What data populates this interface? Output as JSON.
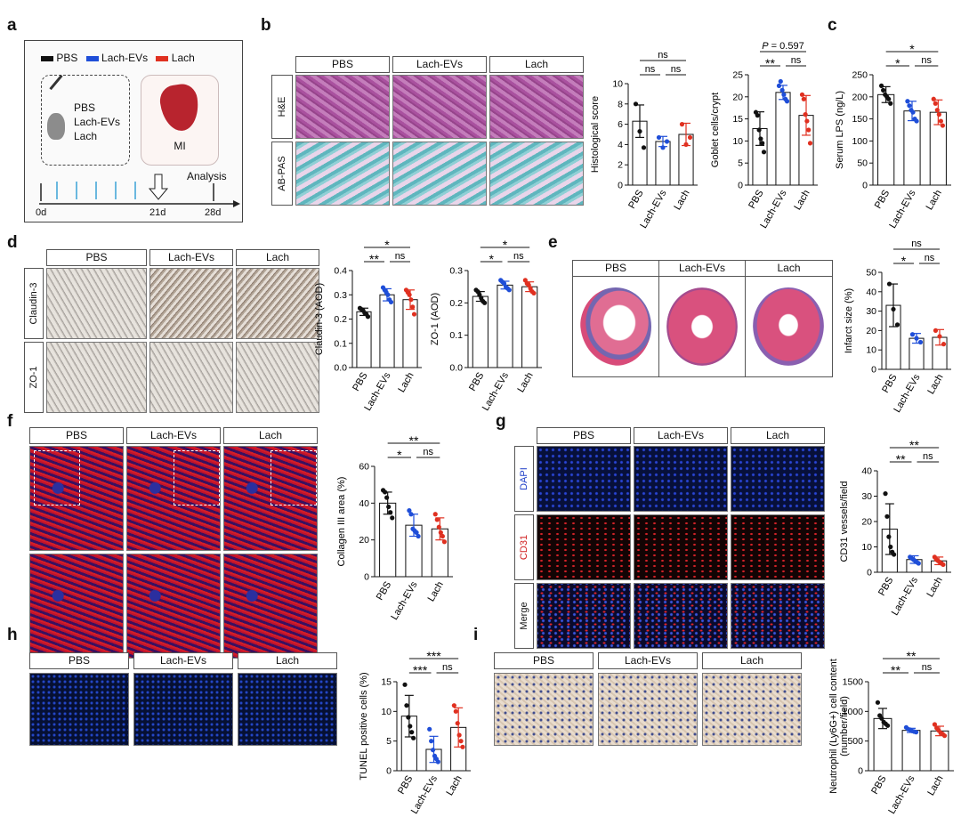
{
  "panel_labels": [
    "a",
    "b",
    "c",
    "d",
    "e",
    "f",
    "g",
    "h",
    "i"
  ],
  "schematic": {
    "legend": [
      {
        "label": "PBS",
        "color": "#111111"
      },
      {
        "label": "Lach-EVs",
        "color": "#1f4ed8"
      },
      {
        "label": "Lach",
        "color": "#e03020"
      }
    ],
    "treatments": [
      "PBS",
      "Lach-EVs",
      "Lach"
    ],
    "mi_label": "MI",
    "analysis_label": "Analysis",
    "days": [
      "0d",
      "21d",
      "28d"
    ]
  },
  "groups": [
    "PBS",
    "Lach-EVs",
    "Lach"
  ],
  "group_colors": [
    "#111111",
    "#1f4ed8",
    "#e03020"
  ],
  "b": {
    "rows": [
      "H&E",
      "AB-PAS"
    ]
  },
  "d": {
    "rows": [
      "Claudin-3",
      "ZO-1"
    ]
  },
  "g": {
    "rows": [
      "DAPI",
      "CD31",
      "Merge"
    ],
    "row_colors": [
      "#2040c8",
      "#d02020",
      "#111111"
    ]
  },
  "chart_data": [
    {
      "id": "b1",
      "type": "bar",
      "categories": [
        "PBS",
        "Lach-EVs",
        "Lach"
      ],
      "values": [
        6.3,
        4.3,
        5.0
      ],
      "errors": [
        1.6,
        0.5,
        1.1
      ],
      "points": [
        [
          8.0,
          5.3,
          3.7
        ],
        [
          4.7,
          3.7,
          4.3
        ],
        [
          6.0,
          4.0,
          4.7
        ]
      ],
      "ylabel": "Histological score",
      "ylim": [
        0,
        10
      ],
      "yticks": [
        0,
        2,
        4,
        6,
        8,
        10
      ],
      "sig": [
        {
          "a": 0,
          "b": 1,
          "label": "ns",
          "level": 0
        },
        {
          "a": 1,
          "b": 2,
          "label": "ns",
          "level": 0
        },
        {
          "a": 0,
          "b": 2,
          "label": "ns",
          "level": 1
        }
      ]
    },
    {
      "id": "b2",
      "type": "bar",
      "categories": [
        "PBS",
        "Lach-EVs",
        "Lach"
      ],
      "values": [
        12.8,
        21.0,
        15.8
      ],
      "errors": [
        3.8,
        1.6,
        4.5
      ],
      "points": [
        [
          16.5,
          15.8,
          12.5,
          10.5,
          9.5,
          7.5
        ],
        [
          22.5,
          23.5,
          21.5,
          20.5,
          19.5,
          19.0
        ],
        [
          20.5,
          19.5,
          16.0,
          14.5,
          12.5,
          9.5
        ]
      ],
      "ylabel": "Goblet cells/crypt",
      "ylim": [
        0,
        25
      ],
      "yticks": [
        0,
        5,
        10,
        15,
        20,
        25
      ],
      "sig": [
        {
          "a": 0,
          "b": 1,
          "label": "**",
          "level": 0
        },
        {
          "a": 1,
          "b": 2,
          "label": "ns",
          "level": 0
        },
        {
          "a": 0,
          "b": 2,
          "label": "P = 0.597",
          "level": 1
        }
      ]
    },
    {
      "id": "c",
      "type": "bar",
      "categories": [
        "PBS",
        "Lach-EVs",
        "Lach"
      ],
      "values": [
        205,
        168,
        165
      ],
      "errors": [
        18,
        22,
        28
      ],
      "points": [
        [
          225,
          215,
          205,
          200,
          195,
          185
        ],
        [
          190,
          180,
          170,
          165,
          150,
          145
        ],
        [
          195,
          185,
          170,
          160,
          145,
          135
        ]
      ],
      "ylabel": "Serum LPS (ng/L)",
      "ylim": [
        0,
        250
      ],
      "yticks": [
        0,
        50,
        100,
        150,
        200,
        250
      ],
      "sig": [
        {
          "a": 0,
          "b": 1,
          "label": "*",
          "level": 0
        },
        {
          "a": 1,
          "b": 2,
          "label": "ns",
          "level": 0
        },
        {
          "a": 0,
          "b": 2,
          "label": "*",
          "level": 1
        }
      ]
    },
    {
      "id": "d1",
      "type": "bar",
      "categories": [
        "PBS",
        "Lach-EVs",
        "Lach"
      ],
      "values": [
        0.23,
        0.3,
        0.28
      ],
      "errors": [
        0.015,
        0.025,
        0.04
      ],
      "points": [
        [
          0.245,
          0.24,
          0.235,
          0.225,
          0.22,
          0.21
        ],
        [
          0.33,
          0.32,
          0.31,
          0.3,
          0.28,
          0.27
        ],
        [
          0.32,
          0.31,
          0.3,
          0.28,
          0.25,
          0.22
        ]
      ],
      "ylabel": "Claudin-3 (AOD)",
      "ylim": [
        0,
        0.4
      ],
      "yticks": [
        0.0,
        0.1,
        0.2,
        0.3,
        0.4
      ],
      "sig": [
        {
          "a": 0,
          "b": 1,
          "label": "**",
          "level": 0
        },
        {
          "a": 1,
          "b": 2,
          "label": "ns",
          "level": 0
        },
        {
          "a": 0,
          "b": 2,
          "label": "*",
          "level": 1
        }
      ]
    },
    {
      "id": "d2",
      "type": "bar",
      "categories": [
        "PBS",
        "Lach-EVs",
        "Lach"
      ],
      "values": [
        0.22,
        0.255,
        0.25
      ],
      "errors": [
        0.015,
        0.012,
        0.015
      ],
      "points": [
        [
          0.24,
          0.235,
          0.225,
          0.215,
          0.205,
          0.2
        ],
        [
          0.27,
          0.265,
          0.26,
          0.25,
          0.245,
          0.24
        ],
        [
          0.27,
          0.26,
          0.255,
          0.245,
          0.235,
          0.23
        ]
      ],
      "ylabel": "ZO-1 (AOD)",
      "ylim": [
        0,
        0.3
      ],
      "yticks": [
        0.0,
        0.1,
        0.2,
        0.3
      ],
      "sig": [
        {
          "a": 0,
          "b": 1,
          "label": "*",
          "level": 0
        },
        {
          "a": 1,
          "b": 2,
          "label": "ns",
          "level": 0
        },
        {
          "a": 0,
          "b": 2,
          "label": "*",
          "level": 1
        }
      ]
    },
    {
      "id": "e",
      "type": "bar",
      "categories": [
        "PBS",
        "Lach-EVs",
        "Lach"
      ],
      "values": [
        33,
        16,
        16.5
      ],
      "errors": [
        11,
        2.5,
        4
      ],
      "points": [
        [
          44,
          31,
          23
        ],
        [
          18,
          16,
          14
        ],
        [
          20,
          17,
          13
        ]
      ],
      "ylabel": "Infarct size (%)",
      "ylim": [
        0,
        50
      ],
      "yticks": [
        0,
        10,
        20,
        30,
        40,
        50
      ],
      "sig": [
        {
          "a": 0,
          "b": 1,
          "label": "*",
          "level": 0
        },
        {
          "a": 1,
          "b": 2,
          "label": "ns",
          "level": 0
        },
        {
          "a": 0,
          "b": 2,
          "label": "ns",
          "level": 1
        }
      ]
    },
    {
      "id": "f",
      "type": "bar",
      "categories": [
        "PBS",
        "Lach-EVs",
        "Lach"
      ],
      "values": [
        40,
        28,
        26
      ],
      "errors": [
        6,
        6,
        6
      ],
      "points": [
        [
          47,
          46,
          43,
          38,
          35,
          32
        ],
        [
          36,
          34,
          26,
          25,
          24,
          22
        ],
        [
          34,
          31,
          27,
          24,
          22,
          19
        ]
      ],
      "ylabel": "Collagen III area (%)",
      "ylim": [
        0,
        60
      ],
      "yticks": [
        0,
        20,
        40,
        60
      ],
      "sig": [
        {
          "a": 0,
          "b": 1,
          "label": "*",
          "level": 0
        },
        {
          "a": 1,
          "b": 2,
          "label": "ns",
          "level": 0
        },
        {
          "a": 0,
          "b": 2,
          "label": "**",
          "level": 1
        }
      ]
    },
    {
      "id": "g",
      "type": "bar",
      "categories": [
        "PBS",
        "Lach-EVs",
        "Lach"
      ],
      "values": [
        17,
        5,
        4.5
      ],
      "errors": [
        10,
        1.5,
        1.5
      ],
      "points": [
        [
          31,
          22,
          14,
          10,
          8,
          7
        ],
        [
          6,
          5.5,
          5,
          4.5,
          4,
          3.5
        ],
        [
          6,
          5,
          4.5,
          4,
          3.5,
          3
        ]
      ],
      "ylabel": "CD31 vessels/field",
      "ylim": [
        0,
        40
      ],
      "yticks": [
        0,
        10,
        20,
        30,
        40
      ],
      "sig": [
        {
          "a": 0,
          "b": 1,
          "label": "**",
          "level": 0
        },
        {
          "a": 1,
          "b": 2,
          "label": "ns",
          "level": 0
        },
        {
          "a": 0,
          "b": 2,
          "label": "**",
          "level": 1
        }
      ]
    },
    {
      "id": "h",
      "type": "bar",
      "categories": [
        "PBS",
        "Lach-EVs",
        "Lach"
      ],
      "values": [
        9.2,
        3.6,
        7.3
      ],
      "errors": [
        3.5,
        2.2,
        3.3
      ],
      "points": [
        [
          14.5,
          11,
          9,
          7.5,
          6.5,
          5.5
        ],
        [
          7,
          5,
          3.5,
          2.5,
          2,
          1.5
        ],
        [
          11,
          10,
          8,
          6,
          5,
          4
        ]
      ],
      "ylabel": "TUNEL positive cells (%)",
      "ylim": [
        0,
        15
      ],
      "yticks": [
        0,
        5,
        10,
        15
      ],
      "sig": [
        {
          "a": 0,
          "b": 1,
          "label": "***",
          "level": 0
        },
        {
          "a": 1,
          "b": 2,
          "label": "ns",
          "level": 0
        },
        {
          "a": 0,
          "b": 2,
          "label": "***",
          "level": 1
        }
      ]
    },
    {
      "id": "i",
      "type": "bar",
      "categories": [
        "PBS",
        "Lach-EVs",
        "Lach"
      ],
      "values": [
        880,
        680,
        670
      ],
      "errors": [
        170,
        35,
        80
      ],
      "points": [
        [
          1150,
          930,
          880,
          820,
          790,
          760
        ],
        [
          730,
          700,
          690,
          670,
          660,
          650
        ],
        [
          780,
          720,
          680,
          640,
          620,
          590
        ]
      ],
      "ylabel": "Neutrophil (Ly6G+) cell content (number/field)",
      "ylim": [
        0,
        1500
      ],
      "yticks": [
        0,
        500,
        1000,
        1500
      ],
      "sig": [
        {
          "a": 0,
          "b": 1,
          "label": "**",
          "level": 0
        },
        {
          "a": 1,
          "b": 2,
          "label": "ns",
          "level": 0
        },
        {
          "a": 0,
          "b": 2,
          "label": "**",
          "level": 1
        }
      ]
    }
  ]
}
